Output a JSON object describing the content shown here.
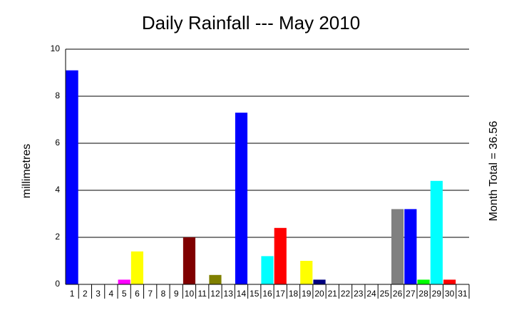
{
  "chart_data": {
    "type": "bar",
    "title": "Daily Rainfall --- May 2010",
    "y_label": "millimetres",
    "annotation": "Month Total = 36.56",
    "categories": [
      "1",
      "2",
      "3",
      "4",
      "5",
      "6",
      "7",
      "8",
      "9",
      "10",
      "11",
      "12",
      "13",
      "14",
      "15",
      "16",
      "17",
      "18",
      "19",
      "20",
      "21",
      "22",
      "23",
      "24",
      "25",
      "26",
      "27",
      "28",
      "29",
      "30",
      "31"
    ],
    "values": [
      9.1,
      0,
      0,
      0,
      0.2,
      1.4,
      0,
      0,
      0,
      2.0,
      0,
      0.4,
      0,
      7.3,
      0,
      1.2,
      2.4,
      0,
      1.0,
      0.2,
      0,
      0,
      0,
      0,
      0,
      3.2,
      3.2,
      0.2,
      4.4,
      0.2,
      0
    ],
    "colors": [
      "#0000ff",
      null,
      null,
      null,
      "#ff00ff",
      "#ffff00",
      null,
      null,
      null,
      "#800000",
      null,
      "#808000",
      null,
      "#0000ff",
      null,
      "#00ffff",
      "#ff0000",
      null,
      "#ffff00",
      "#000080",
      null,
      null,
      null,
      null,
      null,
      "#808080",
      "#0000ff",
      "#00ff00",
      "#00ffff",
      "#ff0000",
      null
    ],
    "ylim": [
      0,
      10
    ],
    "yticks": [
      0,
      2,
      4,
      6,
      8,
      10
    ],
    "grid": true
  }
}
